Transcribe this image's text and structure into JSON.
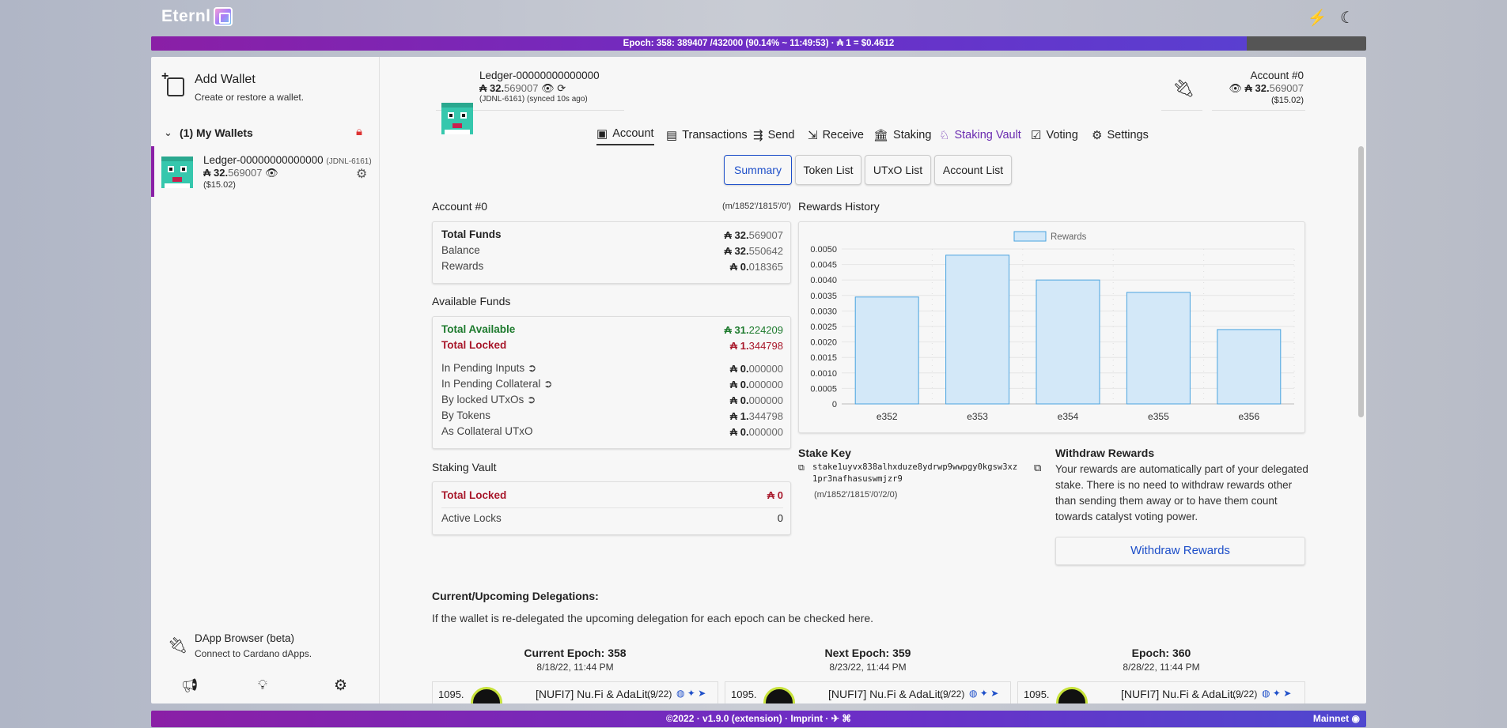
{
  "app": {
    "name": "Eternl"
  },
  "epoch_bar": {
    "text": "Epoch: 358: 389407 /432000 (90.14% ~ 11:49:53) · ₳ 1 = $0.4612",
    "progress_percent": 90.14
  },
  "sidebar": {
    "add_wallet_title": "Add Wallet",
    "add_wallet_sub": "Create or restore a wallet.",
    "group_label": "(1) My Wallets",
    "wallet": {
      "name": "Ledger-00000000000000",
      "tag": "(JDNL-6161)",
      "amount_int": "₳ 32.",
      "amount_dec": "569007",
      "usd": "($15.02)"
    },
    "dapp_title": "DApp Browser (beta)",
    "dapp_sub": "Connect to Cardano dApps."
  },
  "header": {
    "wallet_name": "Ledger-00000000000000",
    "amount_int": "₳ 32.",
    "amount_dec": "569007",
    "sync": "(JDNL-6161) (synced 10s ago)",
    "account_label": "Account #0",
    "account_amount_int": "₳ 32.",
    "account_amount_dec": "569007",
    "account_usd": "($15.02)"
  },
  "tabs": [
    "Account",
    "Transactions",
    "Send",
    "Receive",
    "Staking",
    "Staking Vault",
    "Voting",
    "Settings"
  ],
  "subtabs": [
    "Summary",
    "Token List",
    "UTxO List",
    "Account List"
  ],
  "account": {
    "title": "Account #0",
    "path": "(m/1852'/1815'/0')",
    "total_funds_label": "Total Funds",
    "total_funds_int": "₳ 32.",
    "total_funds_dec": "569007",
    "balance_label": "Balance",
    "balance_int": "₳ 32.",
    "balance_dec": "550642",
    "rewards_label": "Rewards",
    "rewards_int": "₳ 0.",
    "rewards_dec": "018365"
  },
  "available": {
    "title": "Available Funds",
    "total_available_label": "Total Available",
    "total_available_int": "₳ 31.",
    "total_available_dec": "224209",
    "total_locked_label": "Total Locked",
    "total_locked_int": "₳ 1.",
    "total_locked_dec": "344798",
    "pending_inputs_label": "In Pending Inputs",
    "pending_inputs_int": "₳ 0.",
    "pending_inputs_dec": "000000",
    "pending_collateral_label": "In Pending Collateral",
    "pending_collateral_int": "₳ 0.",
    "pending_collateral_dec": "000000",
    "locked_utxos_label": "By locked UTxOs",
    "locked_utxos_int": "₳ 0.",
    "locked_utxos_dec": "000000",
    "by_tokens_label": "By Tokens",
    "by_tokens_int": "₳ 1.",
    "by_tokens_dec": "344798",
    "collateral_label": "As Collateral UTxO",
    "collateral_int": "₳ 0.",
    "collateral_dec": "000000"
  },
  "vault": {
    "title": "Staking Vault",
    "total_locked_label": "Total Locked",
    "total_locked_value": "₳ 0",
    "active_locks_label": "Active Locks",
    "active_locks_value": "0"
  },
  "rewards_history": {
    "title": "Rewards History"
  },
  "chart_data": {
    "type": "bar",
    "categories": [
      "e352",
      "e353",
      "e354",
      "e355",
      "e356"
    ],
    "series": [
      {
        "name": "Rewards",
        "values": [
          0.00345,
          0.0048,
          0.004,
          0.0036,
          0.0024
        ]
      }
    ],
    "ylim": [
      0,
      0.005
    ],
    "yticks": [
      "0",
      "0.0005",
      "0.0010",
      "0.0015",
      "0.0020",
      "0.0025",
      "0.0030",
      "0.0035",
      "0.0040",
      "0.0045",
      "0.0050"
    ],
    "legend": "top-center",
    "colors": {
      "fill": "#d3e8f8",
      "stroke": "#4aa3df"
    }
  },
  "stake_key": {
    "title": "Stake Key",
    "line1": "stake1uyvx838alhxduze8ydrwp9wwpgy0kgsw3xz",
    "line2": "1pr3nafhasuswmjzr9",
    "path": "(m/1852'/1815'/0'/2/0)"
  },
  "withdraw": {
    "title": "Withdraw Rewards",
    "text": "Your rewards are automatically part of your delegated stake. There is no need to withdraw rewards other than sending them away or to have them count towards catalyst voting power.",
    "button": "Withdraw Rewards"
  },
  "delegations": {
    "title": "Current/Upcoming Delegations:",
    "desc": "If the wallet is re-delegated the upcoming delegation for each epoch can be checked here.",
    "epochs": [
      {
        "title": "Current Epoch: 358",
        "date": "8/18/22, 11:44 PM",
        "rank": "1095.",
        "pool": "[NUFI7] Nu.Fi & AdaLit...",
        "count": "(9/22)"
      },
      {
        "title": "Next Epoch: 359",
        "date": "8/23/22, 11:44 PM",
        "rank": "1095.",
        "pool": "[NUFI7] Nu.Fi & AdaLit...",
        "count": "(9/22)"
      },
      {
        "title": "Epoch: 360",
        "date": "8/28/22, 11:44 PM",
        "rank": "1095.",
        "pool": "[NUFI7] Nu.Fi & AdaLit...",
        "count": "(9/22)"
      }
    ]
  },
  "footer": {
    "text": "©2022 · v1.9.0 (extension) · Imprint · ✈ ⌘",
    "network": "Mainnet"
  },
  "colors": {
    "accent": "#8a1fa6",
    "link": "#1e4fc9",
    "green": "#1d7a2d",
    "red": "#a8182b"
  }
}
